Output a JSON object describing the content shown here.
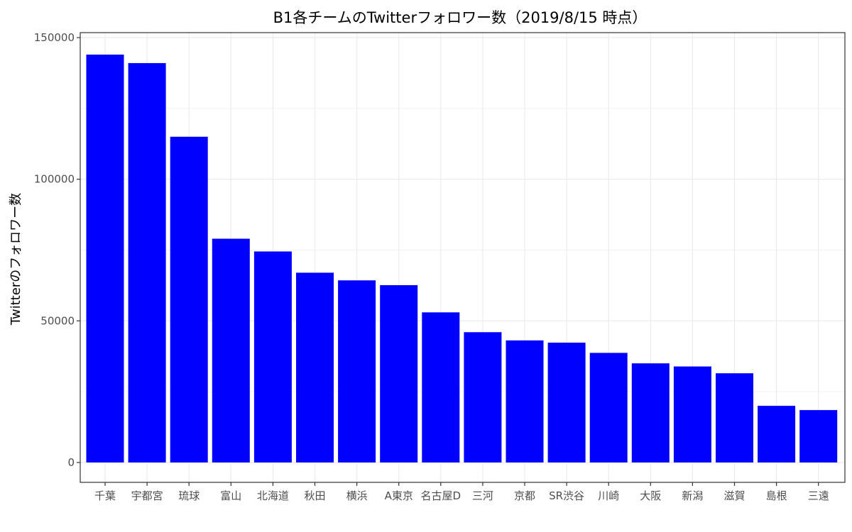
{
  "chart_data": {
    "type": "bar",
    "title": "B1各チームのTwitterフォロワー数（2019/8/15 時点）",
    "xlabel": "",
    "ylabel": "Twitterのフォロワー数",
    "categories": [
      "千葉",
      "宇都宮",
      "琉球",
      "富山",
      "北海道",
      "秋田",
      "横浜",
      "A東京",
      "名古屋D",
      "三河",
      "京都",
      "SR渋谷",
      "川崎",
      "大阪",
      "新潟",
      "滋賀",
      "島根",
      "三遠"
    ],
    "values": [
      144000,
      141000,
      115000,
      79000,
      74500,
      67000,
      64300,
      62600,
      53000,
      46000,
      43100,
      42300,
      38700,
      35000,
      33900,
      31500,
      20000,
      18500
    ],
    "ylim": [
      0,
      150000
    ],
    "yticks": [
      0,
      50000,
      100000,
      150000
    ],
    "ytick_labels": [
      "0",
      "50000",
      "100000",
      "150000"
    ],
    "bar_color": "#0000ff",
    "grid": true,
    "legend": "none"
  }
}
